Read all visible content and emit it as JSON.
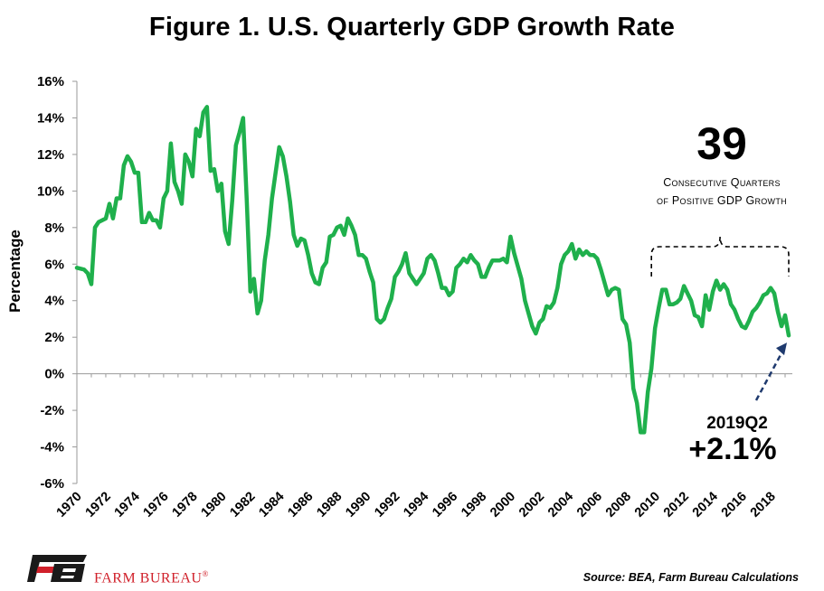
{
  "colors": {
    "line": "#1fb04c",
    "arrow": "#1f3a6e",
    "logo": "#d0202a"
  },
  "chart_data": {
    "type": "line",
    "title": "Figure 1. U.S. Quarterly GDP Growth Rate",
    "ylabel": "Percentage",
    "ylim": [
      -6,
      16
    ],
    "y_ticks": [
      "16%",
      "14%",
      "12%",
      "10%",
      "8%",
      "6%",
      "4%",
      "2%",
      "0%",
      "-2%",
      "-4%",
      "-6%"
    ],
    "x_ticks": [
      "1970",
      "1972",
      "1974",
      "1976",
      "1978",
      "1980",
      "1982",
      "1984",
      "1986",
      "1988",
      "1990",
      "1992",
      "1994",
      "1996",
      "1998",
      "2000",
      "2002",
      "2004",
      "2006",
      "2008",
      "2010",
      "2012",
      "2014",
      "2016",
      "2018"
    ],
    "xlim": [
      1970.0,
      2019.5
    ],
    "series": [
      {
        "points": [
          [
            1970.0,
            5.8
          ],
          [
            1970.5,
            5.7
          ],
          [
            1970.75,
            5.5
          ],
          [
            1971.0,
            4.9
          ],
          [
            1971.25,
            8.0
          ],
          [
            1971.5,
            8.3
          ],
          [
            1971.75,
            8.4
          ],
          [
            1972.0,
            8.5
          ],
          [
            1972.25,
            9.3
          ],
          [
            1972.5,
            8.5
          ],
          [
            1972.75,
            9.6
          ],
          [
            1973.0,
            9.6
          ],
          [
            1973.25,
            11.4
          ],
          [
            1973.5,
            11.9
          ],
          [
            1973.75,
            11.6
          ],
          [
            1974.0,
            11.0
          ],
          [
            1974.25,
            11.0
          ],
          [
            1974.5,
            8.3
          ],
          [
            1974.75,
            8.3
          ],
          [
            1975.0,
            8.8
          ],
          [
            1975.25,
            8.4
          ],
          [
            1975.5,
            8.4
          ],
          [
            1975.75,
            8.0
          ],
          [
            1976.0,
            9.6
          ],
          [
            1976.25,
            10.0
          ],
          [
            1976.5,
            12.6
          ],
          [
            1976.75,
            10.5
          ],
          [
            1977.0,
            10.0
          ],
          [
            1977.25,
            9.3
          ],
          [
            1977.5,
            12.0
          ],
          [
            1977.75,
            11.6
          ],
          [
            1978.0,
            10.8
          ],
          [
            1978.25,
            13.4
          ],
          [
            1978.5,
            13.0
          ],
          [
            1978.75,
            14.3
          ],
          [
            1979.0,
            14.6
          ],
          [
            1979.25,
            11.1
          ],
          [
            1979.5,
            11.2
          ],
          [
            1979.75,
            10.0
          ],
          [
            1980.0,
            10.4
          ],
          [
            1980.25,
            7.8
          ],
          [
            1980.5,
            7.1
          ],
          [
            1980.75,
            9.5
          ],
          [
            1981.0,
            12.5
          ],
          [
            1981.25,
            13.2
          ],
          [
            1981.5,
            14.0
          ],
          [
            1981.75,
            9.5
          ],
          [
            1982.0,
            4.5
          ],
          [
            1982.25,
            5.2
          ],
          [
            1982.5,
            3.3
          ],
          [
            1982.75,
            4.0
          ],
          [
            1983.0,
            6.2
          ],
          [
            1983.25,
            7.6
          ],
          [
            1983.5,
            9.6
          ],
          [
            1983.75,
            11.0
          ],
          [
            1984.0,
            12.4
          ],
          [
            1984.25,
            11.9
          ],
          [
            1984.5,
            10.8
          ],
          [
            1984.75,
            9.4
          ],
          [
            1985.0,
            7.6
          ],
          [
            1985.25,
            7.0
          ],
          [
            1985.5,
            7.4
          ],
          [
            1985.75,
            7.3
          ],
          [
            1986.0,
            6.5
          ],
          [
            1986.25,
            5.5
          ],
          [
            1986.5,
            5.0
          ],
          [
            1986.75,
            4.9
          ],
          [
            1987.0,
            5.8
          ],
          [
            1987.25,
            6.1
          ],
          [
            1987.5,
            7.5
          ],
          [
            1987.75,
            7.6
          ],
          [
            1988.0,
            8.0
          ],
          [
            1988.25,
            8.1
          ],
          [
            1988.5,
            7.6
          ],
          [
            1988.75,
            8.5
          ],
          [
            1989.0,
            8.1
          ],
          [
            1989.25,
            7.6
          ],
          [
            1989.5,
            6.5
          ],
          [
            1989.75,
            6.5
          ],
          [
            1990.0,
            6.3
          ],
          [
            1990.25,
            5.6
          ],
          [
            1990.5,
            5.0
          ],
          [
            1990.75,
            3.0
          ],
          [
            1991.0,
            2.8
          ],
          [
            1991.25,
            3.0
          ],
          [
            1991.5,
            3.6
          ],
          [
            1991.75,
            4.1
          ],
          [
            1992.0,
            5.3
          ],
          [
            1992.25,
            5.6
          ],
          [
            1992.5,
            6.0
          ],
          [
            1992.75,
            6.6
          ],
          [
            1993.0,
            5.5
          ],
          [
            1993.25,
            5.2
          ],
          [
            1993.5,
            4.9
          ],
          [
            1993.75,
            5.2
          ],
          [
            1994.0,
            5.5
          ],
          [
            1994.25,
            6.3
          ],
          [
            1994.5,
            6.5
          ],
          [
            1994.75,
            6.2
          ],
          [
            1995.0,
            5.5
          ],
          [
            1995.25,
            4.7
          ],
          [
            1995.5,
            4.7
          ],
          [
            1995.75,
            4.3
          ],
          [
            1996.0,
            4.5
          ],
          [
            1996.25,
            5.8
          ],
          [
            1996.5,
            6.0
          ],
          [
            1996.75,
            6.3
          ],
          [
            1997.0,
            6.1
          ],
          [
            1997.25,
            6.5
          ],
          [
            1997.5,
            6.2
          ],
          [
            1997.75,
            6.0
          ],
          [
            1998.0,
            5.3
          ],
          [
            1998.25,
            5.3
          ],
          [
            1998.5,
            5.8
          ],
          [
            1998.75,
            6.2
          ],
          [
            1999.0,
            6.2
          ],
          [
            1999.25,
            6.2
          ],
          [
            1999.5,
            6.3
          ],
          [
            1999.75,
            6.1
          ],
          [
            2000.0,
            7.5
          ],
          [
            2000.25,
            6.6
          ],
          [
            2000.5,
            5.9
          ],
          [
            2000.75,
            5.2
          ],
          [
            2001.0,
            4.0
          ],
          [
            2001.25,
            3.3
          ],
          [
            2001.5,
            2.6
          ],
          [
            2001.75,
            2.2
          ],
          [
            2002.0,
            2.8
          ],
          [
            2002.25,
            3.0
          ],
          [
            2002.5,
            3.7
          ],
          [
            2002.75,
            3.6
          ],
          [
            2003.0,
            3.9
          ],
          [
            2003.25,
            4.7
          ],
          [
            2003.5,
            6.0
          ],
          [
            2003.75,
            6.5
          ],
          [
            2004.0,
            6.7
          ],
          [
            2004.25,
            7.1
          ],
          [
            2004.5,
            6.3
          ],
          [
            2004.75,
            6.8
          ],
          [
            2005.0,
            6.5
          ],
          [
            2005.25,
            6.7
          ],
          [
            2005.5,
            6.5
          ],
          [
            2005.75,
            6.5
          ],
          [
            2006.0,
            6.3
          ],
          [
            2006.25,
            5.7
          ],
          [
            2006.5,
            5.0
          ],
          [
            2006.75,
            4.3
          ],
          [
            2007.0,
            4.6
          ],
          [
            2007.25,
            4.7
          ],
          [
            2007.5,
            4.6
          ],
          [
            2007.75,
            3.0
          ],
          [
            2008.0,
            2.7
          ],
          [
            2008.25,
            1.7
          ],
          [
            2008.5,
            -0.8
          ],
          [
            2008.75,
            -1.6
          ],
          [
            2009.0,
            -3.2
          ],
          [
            2009.25,
            -3.2
          ],
          [
            2009.5,
            -1.0
          ],
          [
            2009.75,
            0.3
          ],
          [
            2010.0,
            2.5
          ],
          [
            2010.25,
            3.6
          ],
          [
            2010.5,
            4.6
          ],
          [
            2010.75,
            4.6
          ],
          [
            2011.0,
            3.8
          ],
          [
            2011.25,
            3.8
          ],
          [
            2011.5,
            3.9
          ],
          [
            2011.75,
            4.1
          ],
          [
            2012.0,
            4.8
          ],
          [
            2012.25,
            4.4
          ],
          [
            2012.5,
            4.0
          ],
          [
            2012.75,
            3.2
          ],
          [
            2013.0,
            3.1
          ],
          [
            2013.25,
            2.6
          ],
          [
            2013.5,
            4.3
          ],
          [
            2013.75,
            3.5
          ],
          [
            2014.0,
            4.5
          ],
          [
            2014.25,
            5.1
          ],
          [
            2014.5,
            4.6
          ],
          [
            2014.75,
            4.9
          ],
          [
            2015.0,
            4.6
          ],
          [
            2015.25,
            3.8
          ],
          [
            2015.5,
            3.5
          ],
          [
            2015.75,
            3.0
          ],
          [
            2016.0,
            2.6
          ],
          [
            2016.25,
            2.5
          ],
          [
            2016.5,
            2.9
          ],
          [
            2016.75,
            3.4
          ],
          [
            2017.0,
            3.6
          ],
          [
            2017.25,
            3.9
          ],
          [
            2017.5,
            4.3
          ],
          [
            2017.75,
            4.4
          ],
          [
            2018.0,
            4.7
          ],
          [
            2018.25,
            4.4
          ],
          [
            2018.5,
            3.4
          ],
          [
            2018.75,
            2.6
          ],
          [
            2019.0,
            3.2
          ],
          [
            2019.25,
            2.1
          ]
        ]
      }
    ],
    "grid": false,
    "annotations": {
      "streak_number": "39",
      "streak_line1": "Consecutive Quarters",
      "streak_line2": "of Positive GDP Growth",
      "brace_start": 2009.75,
      "brace_end": 2019.25,
      "latest_period": "2019Q2",
      "latest_value": "+2.1%"
    },
    "source": "Source: BEA, Farm Bureau Calculations"
  },
  "logo": {
    "mark": "FB",
    "brand": "FARM BUREAU",
    "registered": "®"
  }
}
